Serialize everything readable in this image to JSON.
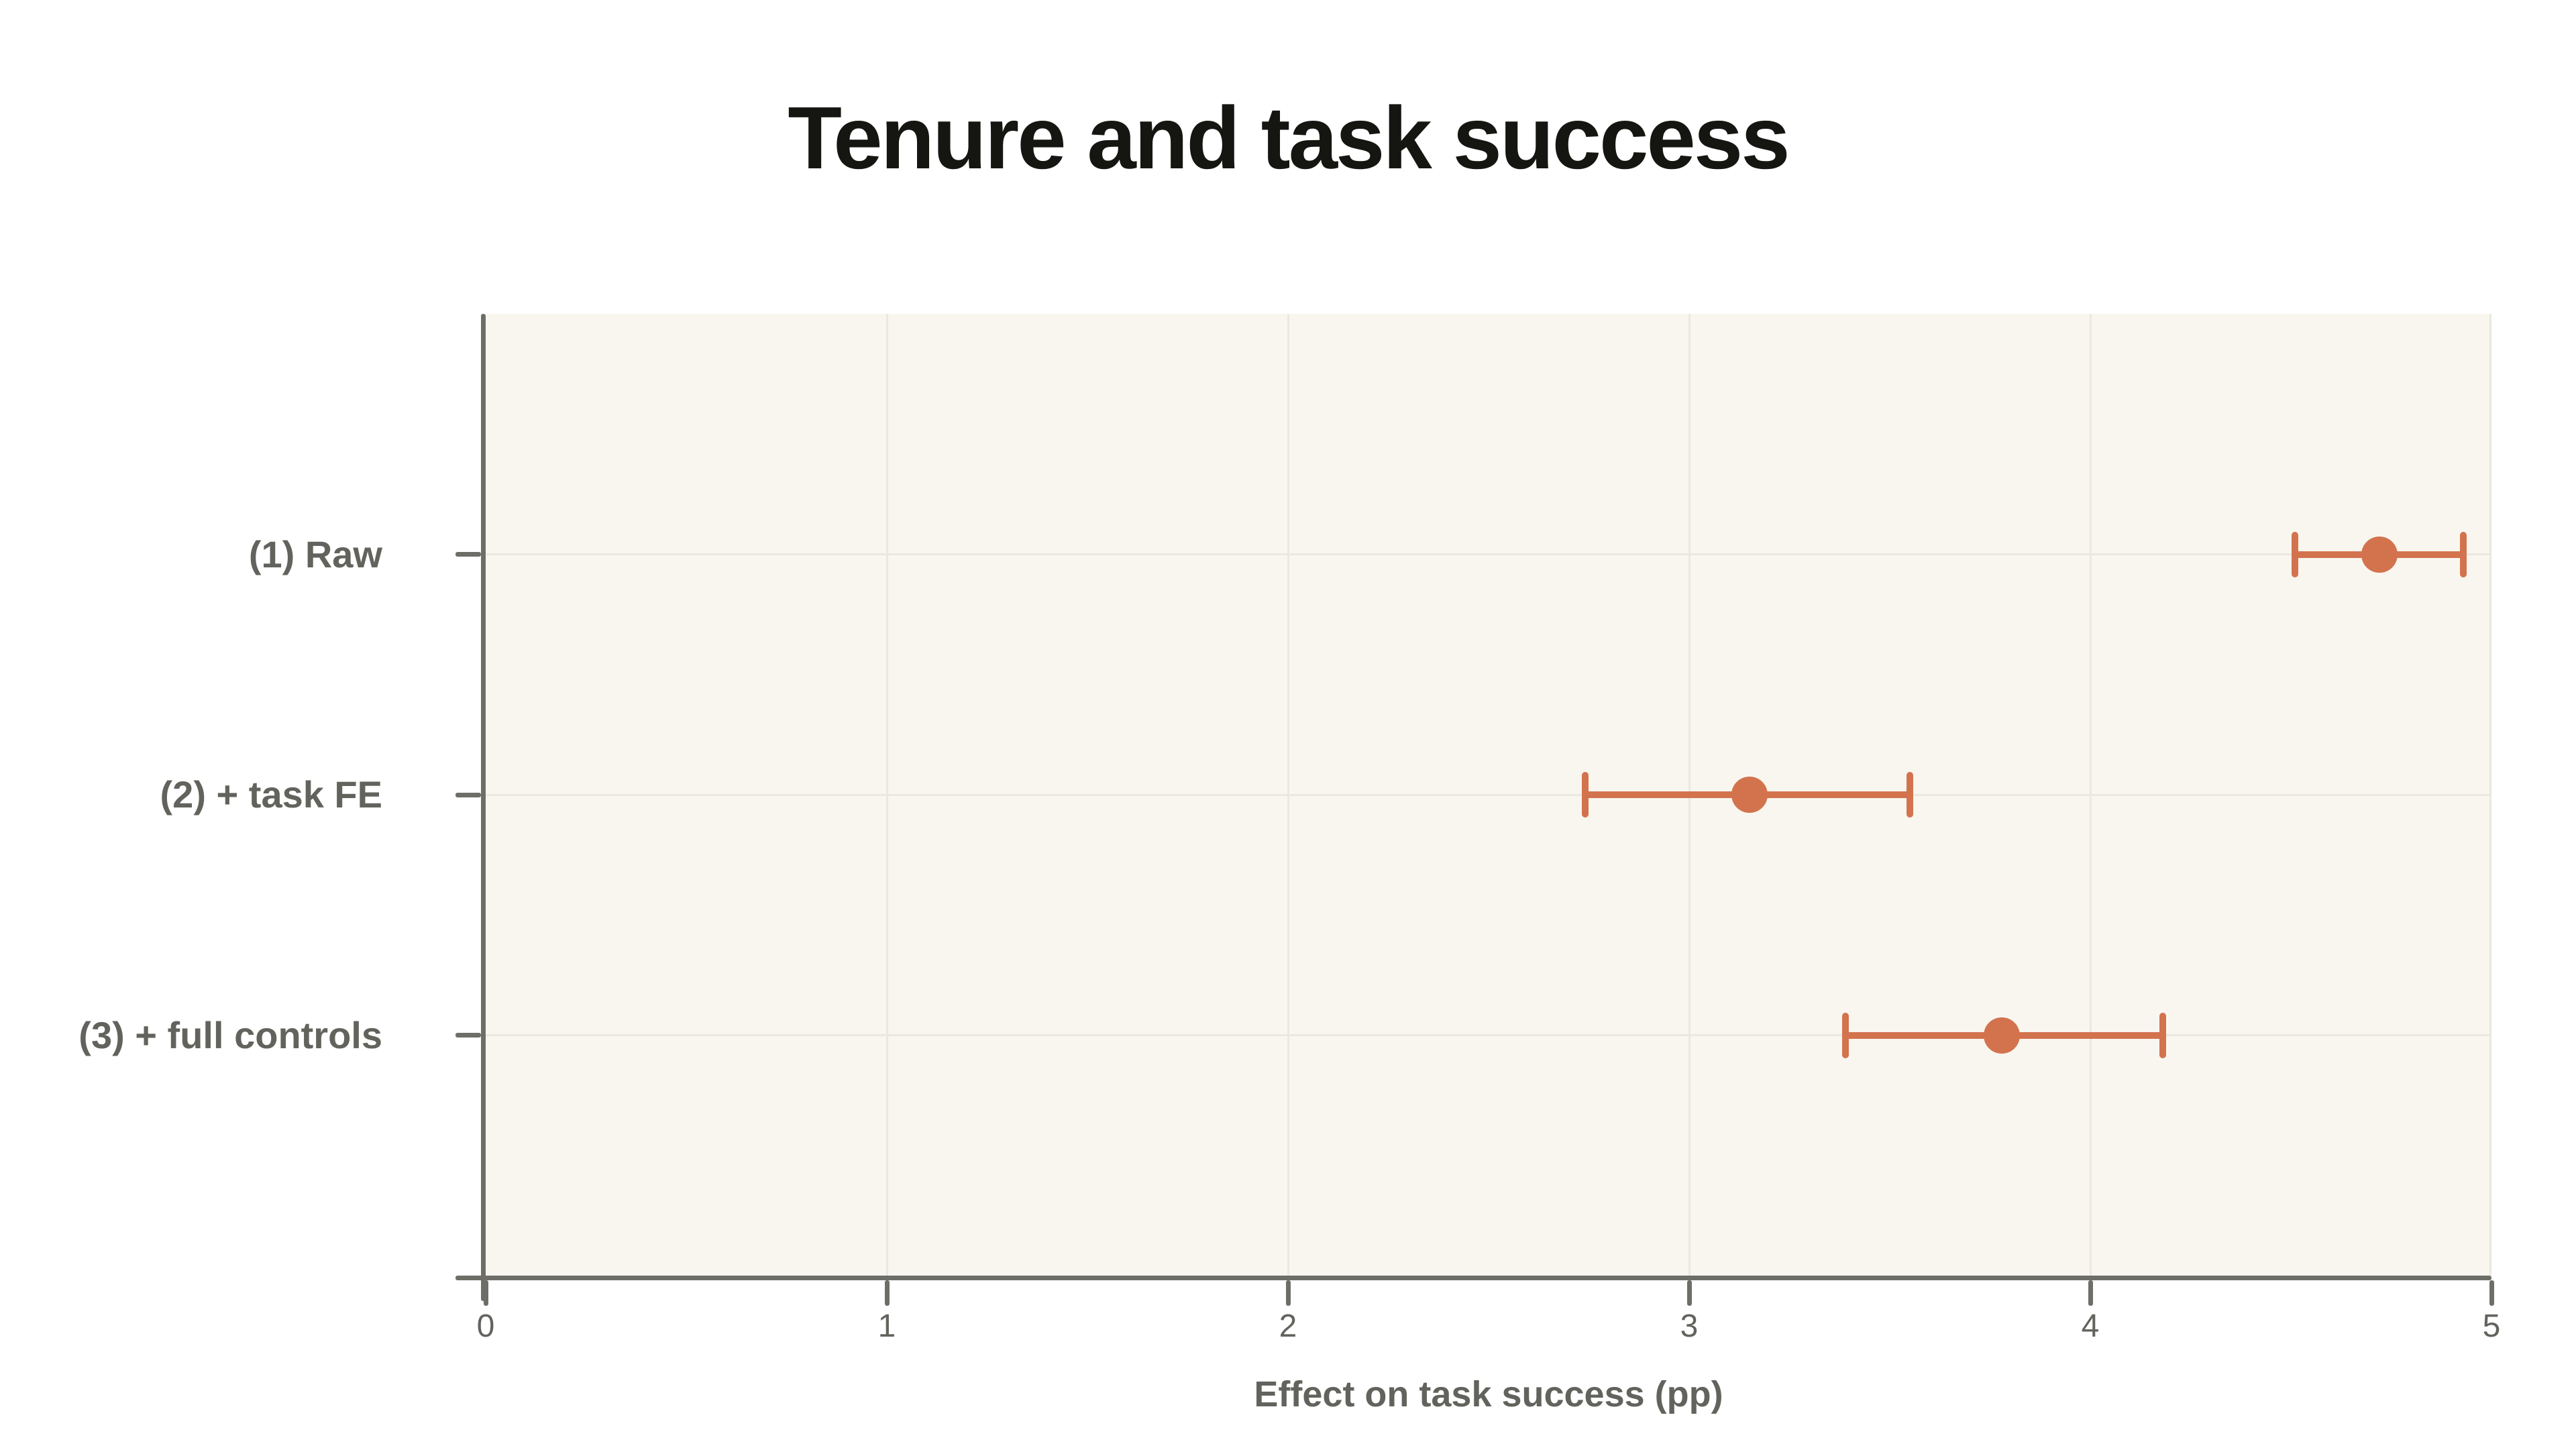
{
  "title": "Tenure and task success",
  "axes": {
    "xlabel": "Effect on task success (pp)",
    "xtick_labels": [
      "0",
      "1",
      "2",
      "3",
      "4",
      "5"
    ]
  },
  "colors": {
    "page_bg": "#FFFFFF",
    "plot_bg": "#F8F6EF",
    "grid": "#EBE8DE",
    "axis": "#6E6E68",
    "text_label": "#63635E",
    "title": "#151512",
    "marker": "#D3734E"
  },
  "chart_data": {
    "type": "scatter",
    "subtype": "horizontal-errorbar-coefficient-plot",
    "title": "Tenure and task success",
    "xlabel": "Effect on task success (pp)",
    "ylabel": "",
    "xlim": [
      0,
      5
    ],
    "xticks": [
      0,
      1,
      2,
      3,
      4,
      5
    ],
    "grid": true,
    "legend": false,
    "categories": [
      "(1) Raw",
      "(2) + task FE",
      "(3) + full controls"
    ],
    "points": [
      {
        "label": "(1) Raw",
        "estimate": 4.72,
        "ci_low": 4.51,
        "ci_high": 4.93
      },
      {
        "label": "(2) + task FE",
        "estimate": 3.15,
        "ci_low": 2.74,
        "ci_high": 3.55
      },
      {
        "label": "(3) + full controls",
        "estimate": 3.78,
        "ci_low": 3.39,
        "ci_high": 4.18
      }
    ]
  }
}
